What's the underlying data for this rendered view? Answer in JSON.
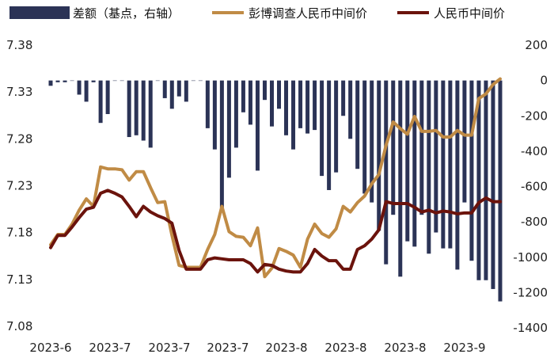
{
  "chart_data": {
    "type": "bar+line",
    "title": "",
    "legend": [
      {
        "key": "diff",
        "label": "差额（基点，右轴）",
        "color": "#2b3356"
      },
      {
        "key": "survey",
        "label": "彭博调查人民币中间价",
        "color": "#c08b45"
      },
      {
        "key": "fixing",
        "label": "人民币中间价",
        "color": "#6b130c"
      }
    ],
    "x_tick_labels": [
      "2023-6",
      "2023-7",
      "2023-7",
      "2023-7",
      "2023-8",
      "2023-8",
      "2023-8",
      "2023-9"
    ],
    "y_left": {
      "min": 7.08,
      "max": 7.38,
      "ticks": [
        "7.08",
        "7.13",
        "7.18",
        "7.23",
        "7.28",
        "7.33",
        "7.38"
      ]
    },
    "y_right": {
      "min": -1400,
      "max": 200,
      "ticks": [
        "-1400",
        "-1200",
        "-1000",
        "-800",
        "-600",
        "-400",
        "-200",
        "0",
        "200"
      ]
    },
    "series": [
      {
        "name": "彭博调查人民币中间价",
        "axis": "left",
        "values": [
          7.167,
          7.178,
          7.178,
          7.189,
          7.204,
          7.216,
          7.208,
          7.25,
          7.248,
          7.248,
          7.247,
          7.236,
          7.245,
          7.245,
          7.228,
          7.212,
          7.213,
          7.177,
          7.145,
          7.143,
          7.143,
          7.143,
          7.162,
          7.178,
          7.208,
          7.181,
          7.176,
          7.175,
          7.166,
          7.185,
          7.133,
          7.142,
          7.163,
          7.16,
          7.156,
          7.143,
          7.173,
          7.189,
          7.179,
          7.175,
          7.184,
          7.208,
          7.202,
          7.212,
          7.219,
          7.232,
          7.242,
          7.273,
          7.298,
          7.291,
          7.285,
          7.304,
          7.288,
          7.288,
          7.289,
          7.282,
          7.282,
          7.289,
          7.284,
          7.284,
          7.323,
          7.328,
          7.338,
          7.344
        ]
      },
      {
        "name": "人民币中间价",
        "axis": "left",
        "values": [
          7.164,
          7.177,
          7.177,
          7.186,
          7.196,
          7.205,
          7.207,
          7.222,
          7.225,
          7.222,
          7.218,
          7.208,
          7.197,
          7.208,
          7.202,
          7.198,
          7.195,
          7.19,
          7.161,
          7.141,
          7.141,
          7.141,
          7.151,
          7.153,
          7.152,
          7.151,
          7.151,
          7.151,
          7.147,
          7.138,
          7.146,
          7.145,
          7.141,
          7.139,
          7.138,
          7.138,
          7.147,
          7.162,
          7.155,
          7.15,
          7.15,
          7.141,
          7.141,
          7.162,
          7.166,
          7.173,
          7.183,
          7.213,
          7.211,
          7.211,
          7.211,
          7.207,
          7.202,
          7.204,
          7.201,
          7.203,
          7.202,
          7.2,
          7.201,
          7.201,
          7.212,
          7.217,
          7.213,
          7.213
        ]
      },
      {
        "name": "差额（基点，右轴）",
        "axis": "right",
        "values": [
          -30,
          -10,
          -10,
          0,
          -80,
          -120,
          -10,
          -240,
          -190,
          0,
          0,
          -320,
          -310,
          -340,
          -380,
          0,
          -100,
          -160,
          -90,
          -120,
          0,
          0,
          -270,
          -390,
          -720,
          -550,
          -380,
          -180,
          -250,
          -510,
          -110,
          -260,
          -160,
          -310,
          -390,
          -270,
          -300,
          -280,
          -540,
          -620,
          -520,
          -200,
          -330,
          -500,
          -640,
          -690,
          -850,
          -1040,
          -760,
          -1110,
          -910,
          -940,
          -760,
          -980,
          -860,
          -950,
          -950,
          -1070,
          -690,
          -1020,
          -1130,
          -1130,
          -1180,
          -1250
        ]
      }
    ]
  }
}
